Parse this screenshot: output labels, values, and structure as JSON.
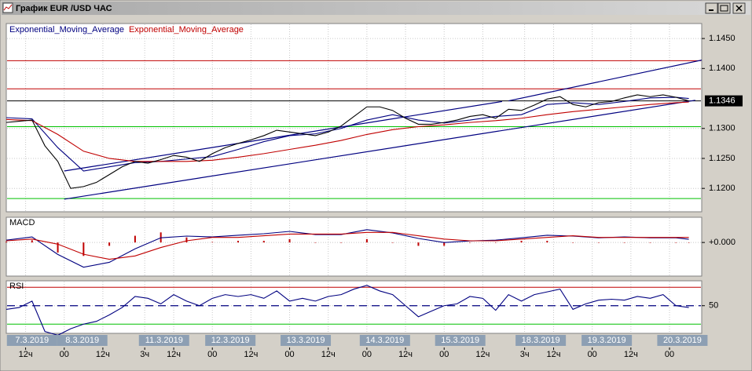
{
  "window": {
    "title": "График EUR /USD  ЧАС"
  },
  "chart_data": [
    {
      "type": "line",
      "color": "#000000",
      "grid": true,
      "xlim": [
        0,
        216
      ],
      "ylim": [
        1.1161,
        1.1475
      ],
      "yticks": [
        {
          "value": 1.12,
          "label": "1.1200"
        },
        {
          "value": 1.125,
          "label": "1.1250"
        },
        {
          "value": 1.13,
          "label": "1.1300"
        },
        {
          "value": 1.14,
          "label": "1.1400"
        },
        {
          "value": 1.145,
          "label": "1.1450"
        }
      ],
      "x": [
        0,
        4,
        8,
        12,
        16,
        20,
        24,
        28,
        32,
        36,
        40,
        44,
        48,
        52,
        56,
        60,
        64,
        68,
        72,
        76,
        80,
        84,
        88,
        92,
        96,
        100,
        104,
        108,
        112,
        116,
        120,
        124,
        128,
        132,
        136,
        140,
        144,
        148,
        152,
        156,
        160,
        164,
        168,
        172,
        176,
        180,
        184,
        188,
        192,
        196,
        200,
        204,
        208,
        212
      ],
      "values": [
        1.131,
        1.1312,
        1.1314,
        1.1271,
        1.1245,
        1.12,
        1.1203,
        1.121,
        1.1223,
        1.1236,
        1.1245,
        1.1242,
        1.1248,
        1.1255,
        1.1252,
        1.1245,
        1.1258,
        1.1268,
        1.1275,
        1.1281,
        1.1288,
        1.1297,
        1.1294,
        1.1291,
        1.1288,
        1.1294,
        1.1304,
        1.132,
        1.1336,
        1.1336,
        1.133,
        1.1317,
        1.1307,
        1.1307,
        1.131,
        1.1314,
        1.132,
        1.1323,
        1.1317,
        1.1332,
        1.133,
        1.1339,
        1.1349,
        1.1353,
        1.134,
        1.1336,
        1.1343,
        1.1345,
        1.1351,
        1.1356,
        1.1353,
        1.1356,
        1.1352,
        1.1346
      ],
      "series": [
        {
          "name": "Exponential_Moving_Average",
          "color": "#000080",
          "x": [
            0,
            8,
            16,
            24,
            32,
            40,
            48,
            56,
            64,
            72,
            80,
            88,
            96,
            104,
            112,
            120,
            128,
            136,
            144,
            152,
            160,
            168,
            176,
            184,
            192,
            200,
            208,
            212
          ],
          "values": [
            1.1318,
            1.1316,
            1.1268,
            1.1229,
            1.1236,
            1.1243,
            1.1245,
            1.1249,
            1.1253,
            1.1265,
            1.1278,
            1.1288,
            1.1291,
            1.13,
            1.1314,
            1.1323,
            1.1314,
            1.1309,
            1.1314,
            1.132,
            1.1323,
            1.134,
            1.1343,
            1.134,
            1.1345,
            1.1351,
            1.1352,
            1.135
          ]
        },
        {
          "name": "Exponential_Moving_Average",
          "color": "#c00000",
          "x": [
            0,
            8,
            16,
            24,
            32,
            40,
            48,
            56,
            64,
            72,
            80,
            88,
            96,
            104,
            112,
            120,
            128,
            136,
            144,
            152,
            160,
            168,
            176,
            184,
            192,
            200,
            208,
            212
          ],
          "values": [
            1.1315,
            1.1313,
            1.129,
            1.1262,
            1.125,
            1.1245,
            1.1245,
            1.1245,
            1.1247,
            1.1252,
            1.1258,
            1.1265,
            1.1272,
            1.128,
            1.129,
            1.1298,
            1.1303,
            1.1306,
            1.131,
            1.1313,
            1.1317,
            1.1323,
            1.1328,
            1.1332,
            1.1336,
            1.134,
            1.1343,
            1.1344
          ]
        }
      ],
      "hlines": [
        {
          "value": 1.1413,
          "color": "#c00000"
        },
        {
          "value": 1.1366,
          "color": "#c00000"
        },
        {
          "value": 1.1346,
          "color": "#000000"
        },
        {
          "value": 1.1303,
          "color": "#00c000"
        },
        {
          "value": 1.1183,
          "color": "#00c000"
        }
      ],
      "trendlines": [
        {
          "x": [
            18,
            154
          ],
          "values": [
            1.1229,
            1.1345
          ],
          "color": "#000080"
        },
        {
          "x": [
            156,
            216
          ],
          "values": [
            1.1346,
            1.1414
          ],
          "color": "#000080"
        },
        {
          "x": [
            18,
            214
          ],
          "values": [
            1.1182,
            1.1347
          ],
          "color": "#000080"
        }
      ],
      "last_price": {
        "value": 1.1346,
        "label": "1.1346"
      }
    },
    {
      "type": "line",
      "title": "MACD",
      "grid": true,
      "xlim": [
        0,
        216
      ],
      "ylim": [
        -0.002,
        0.0015
      ],
      "yticks": [
        {
          "value": 0,
          "label": "+0.000"
        }
      ],
      "series": [
        {
          "type": "bar",
          "color": "#c00000",
          "x": [
            0,
            8,
            16,
            24,
            32,
            40,
            48,
            56,
            64,
            72,
            80,
            88,
            96,
            104,
            112,
            120,
            128,
            136,
            144,
            152,
            160,
            168,
            176,
            184,
            192,
            200,
            208,
            212
          ],
          "values": [
            4e-05,
            0.00013,
            -0.0006,
            -0.0008,
            -0.0002,
            0.0004,
            0.0006,
            0.0003,
            3e-05,
            0.0001,
            0.0001,
            0.0002,
            0,
            0,
            0.0002,
            0,
            -0.0002,
            -0.0002,
            0,
            0,
            0.0001,
            0.0001,
            0,
            0,
            0,
            0,
            0,
            0
          ]
        },
        {
          "type": "line",
          "color": "#000080",
          "x": [
            0,
            8,
            16,
            24,
            32,
            40,
            48,
            56,
            64,
            72,
            80,
            88,
            96,
            104,
            112,
            120,
            128,
            136,
            144,
            152,
            160,
            168,
            176,
            184,
            192,
            200,
            208,
            212
          ],
          "values": [
            0.00014,
            0.00033,
            -0.00071,
            -0.00147,
            -0.00118,
            -0.00038,
            0.00028,
            0.00038,
            0.00033,
            0.00043,
            0.00052,
            0.00066,
            0.00047,
            0.00047,
            0.00076,
            0.00057,
            0.00024,
            0,
            9e-05,
            0.00014,
            0.00028,
            0.00043,
            0.00038,
            0.00028,
            0.00033,
            0.00028,
            0.00028,
            0.00019
          ]
        },
        {
          "type": "line",
          "color": "#c00000",
          "x": [
            0,
            8,
            16,
            24,
            32,
            40,
            48,
            56,
            64,
            72,
            80,
            88,
            96,
            104,
            112,
            120,
            128,
            136,
            144,
            152,
            160,
            168,
            176,
            184,
            192,
            200,
            208,
            212
          ],
          "values": [
            0.0001,
            0.0002,
            -0.0001,
            -0.0007,
            -0.001,
            -0.0008,
            -0.0003,
            0.0001,
            0.0003,
            0.0003,
            0.0004,
            0.0005,
            0.0005,
            0.0005,
            0.0006,
            0.0006,
            0.0004,
            0.0002,
            0.0001,
            0.0001,
            0.0002,
            0.0003,
            0.0004,
            0.0003,
            0.0003,
            0.0003,
            0.0003,
            0.0003
          ]
        }
      ]
    },
    {
      "type": "line",
      "title": "RSI",
      "color": "#000080",
      "grid": true,
      "xlim": [
        0,
        216
      ],
      "ylim": [
        20,
        77
      ],
      "yticks": [
        50
      ],
      "hlines": [
        {
          "value": 70,
          "color": "#c00000"
        },
        {
          "value": 50,
          "color": "#000080",
          "style": "dashed"
        },
        {
          "value": 30,
          "color": "#00c000"
        }
      ],
      "x": [
        0,
        4,
        8,
        12,
        16,
        20,
        24,
        28,
        32,
        36,
        40,
        44,
        48,
        52,
        56,
        60,
        64,
        68,
        72,
        76,
        80,
        84,
        88,
        92,
        96,
        100,
        104,
        108,
        112,
        116,
        120,
        124,
        128,
        132,
        136,
        140,
        144,
        148,
        152,
        156,
        160,
        164,
        168,
        172,
        176,
        180,
        184,
        188,
        192,
        196,
        200,
        204,
        208,
        212
      ],
      "values": [
        46,
        48,
        55,
        22,
        18,
        25,
        30,
        33,
        40,
        48,
        60,
        58,
        52,
        62,
        55,
        50,
        58,
        62,
        60,
        62,
        58,
        66,
        55,
        58,
        55,
        60,
        62,
        68,
        72,
        66,
        62,
        50,
        38,
        44,
        50,
        52,
        60,
        58,
        45,
        62,
        55,
        62,
        65,
        68,
        46,
        52,
        56,
        57,
        56,
        60,
        58,
        62,
        50,
        48
      ],
      "xticks": [
        {
          "value": 6,
          "label": "12ч"
        },
        {
          "value": 18,
          "label": "00"
        },
        {
          "value": 30,
          "label": "12ч"
        },
        {
          "value": 43,
          "label": "3ч"
        },
        {
          "value": 52,
          "label": "12ч"
        },
        {
          "value": 64,
          "label": "00"
        },
        {
          "value": 76,
          "label": "12ч"
        },
        {
          "value": 88,
          "label": "00"
        },
        {
          "value": 100,
          "label": "12ч"
        },
        {
          "value": 112,
          "label": "00"
        },
        {
          "value": 124,
          "label": "12ч"
        },
        {
          "value": 136,
          "label": "00"
        },
        {
          "value": 148,
          "label": "12ч"
        },
        {
          "value": 161,
          "label": "3ч"
        },
        {
          "value": 170,
          "label": "12ч"
        },
        {
          "value": 182,
          "label": "00"
        },
        {
          "value": 194,
          "label": "12ч"
        },
        {
          "value": 206,
          "label": "00"
        }
      ],
      "date_labels": [
        {
          "value": 8,
          "label": "7.3.2019"
        },
        {
          "value": 23.6,
          "label": "8.3.2019"
        },
        {
          "value": 49,
          "label": "11.3.2019"
        },
        {
          "value": 69.6,
          "label": "12.3.2019"
        },
        {
          "value": 93,
          "label": "13.3.2019"
        },
        {
          "value": 117.6,
          "label": "14.3.2019"
        },
        {
          "value": 141,
          "label": "15.3.2019"
        },
        {
          "value": 166,
          "label": "18.3.2019"
        },
        {
          "value": 186.5,
          "label": "19.3.2019"
        },
        {
          "value": 210,
          "label": "20.3.2019"
        }
      ]
    }
  ]
}
